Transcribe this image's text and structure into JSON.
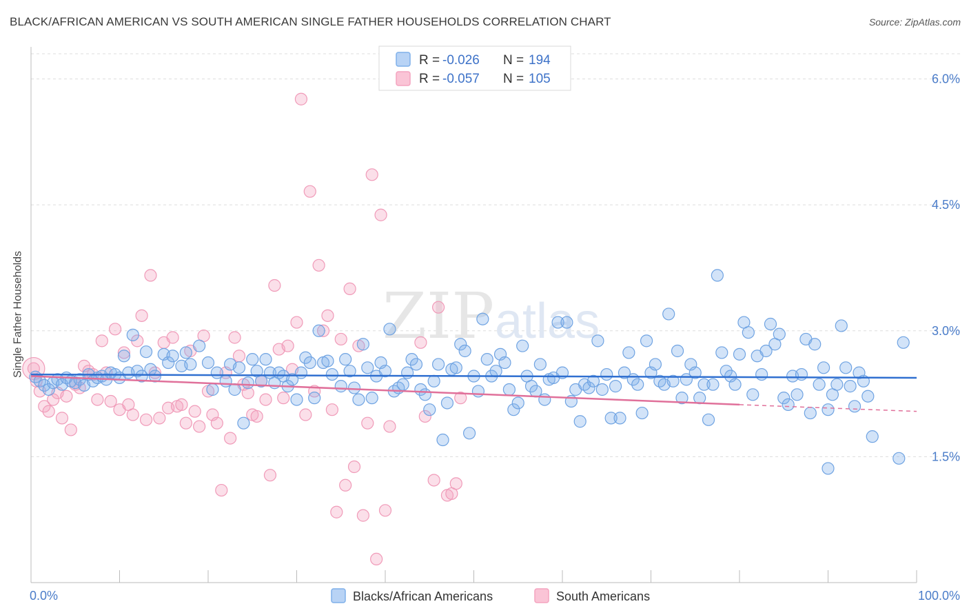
{
  "title": "BLACK/AFRICAN AMERICAN VS SOUTH AMERICAN SINGLE FATHER HOUSEHOLDS CORRELATION CHART",
  "source": "Source: ZipAtlas.com",
  "watermark": {
    "zip": "ZIP",
    "atlas": "atlas"
  },
  "colors": {
    "blue": "#7fb0ea",
    "pink": "#f4a3bf",
    "blue_line": "#2f6fd0",
    "pink_line": "#e0709a",
    "tick_text": "#4a7cc9"
  },
  "legend": {
    "rows": [
      {
        "r_label": "R =",
        "r_value": "-0.026",
        "n_label": "N =",
        "n_value": "194"
      },
      {
        "r_label": "R =",
        "r_value": "-0.057",
        "n_label": "N =",
        "n_value": "105"
      }
    ]
  },
  "bottom_legend": [
    "Blacks/African Americans",
    "South Americans"
  ],
  "chart_data": {
    "type": "scatter",
    "title": "BLACK/AFRICAN AMERICAN VS SOUTH AMERICAN SINGLE FATHER HOUSEHOLDS CORRELATION CHART",
    "xlabel": "",
    "ylabel": "Single Father Households",
    "xlim": [
      0,
      100
    ],
    "ylim": [
      0.0,
      6.3
    ],
    "x_tick_labels": [
      "0.0%",
      "100.0%"
    ],
    "y_ticks": [
      1.5,
      3.0,
      4.5,
      6.0
    ],
    "y_tick_labels": [
      "1.5%",
      "3.0%",
      "4.5%",
      "6.0%"
    ],
    "grid": "horizontal dashed",
    "legend_position": "top-center",
    "series": [
      {
        "name": "Blacks/African Americans",
        "trend": {
          "x0": 0,
          "y0": 2.48,
          "x1": 100,
          "y1": 2.44
        },
        "points": [
          [
            0.5,
            2.45
          ],
          [
            1,
            2.4
          ],
          [
            1.5,
            2.35
          ],
          [
            2,
            2.3
          ],
          [
            2.5,
            2.38
          ],
          [
            3,
            2.42
          ],
          [
            3.5,
            2.36
          ],
          [
            4,
            2.44
          ],
          [
            4.5,
            2.4
          ],
          [
            5,
            2.38
          ],
          [
            5.5,
            2.42
          ],
          [
            6,
            2.35
          ],
          [
            6.5,
            2.48
          ],
          [
            7,
            2.4
          ],
          [
            7.5,
            2.44
          ],
          [
            8,
            2.46
          ],
          [
            8.5,
            2.42
          ],
          [
            9,
            2.5
          ],
          [
            9.5,
            2.48
          ],
          [
            10,
            2.44
          ],
          [
            10.5,
            2.7
          ],
          [
            11,
            2.5
          ],
          [
            11.5,
            2.95
          ],
          [
            12,
            2.52
          ],
          [
            12.5,
            2.46
          ],
          [
            13,
            2.75
          ],
          [
            13.5,
            2.54
          ],
          [
            14,
            2.46
          ],
          [
            15,
            2.72
          ],
          [
            15.5,
            2.62
          ],
          [
            16,
            2.7
          ],
          [
            17,
            2.58
          ],
          [
            17.5,
            2.74
          ],
          [
            18,
            2.6
          ],
          [
            19,
            2.82
          ],
          [
            20,
            2.62
          ],
          [
            20.5,
            2.3
          ],
          [
            21,
            2.5
          ],
          [
            22,
            2.4
          ],
          [
            22.5,
            2.6
          ],
          [
            23,
            2.3
          ],
          [
            23.5,
            2.56
          ],
          [
            24,
            1.9
          ],
          [
            24.5,
            2.38
          ],
          [
            25,
            2.66
          ],
          [
            25.5,
            2.52
          ],
          [
            26,
            2.4
          ],
          [
            26.5,
            2.66
          ],
          [
            27,
            2.5
          ],
          [
            27.5,
            2.38
          ],
          [
            28,
            2.5
          ],
          [
            28.5,
            2.46
          ],
          [
            29,
            2.34
          ],
          [
            29.5,
            2.42
          ],
          [
            30,
            2.18
          ],
          [
            30.5,
            2.5
          ],
          [
            31,
            2.68
          ],
          [
            31.5,
            2.62
          ],
          [
            32,
            2.2
          ],
          [
            32.5,
            3.0
          ],
          [
            33,
            2.62
          ],
          [
            33.5,
            2.64
          ],
          [
            34,
            2.48
          ],
          [
            35,
            2.34
          ],
          [
            35.5,
            2.66
          ],
          [
            36,
            2.52
          ],
          [
            36.5,
            2.32
          ],
          [
            37,
            2.18
          ],
          [
            37.5,
            2.84
          ],
          [
            38,
            2.56
          ],
          [
            38.5,
            2.2
          ],
          [
            39,
            2.46
          ],
          [
            39.5,
            2.62
          ],
          [
            40,
            2.52
          ],
          [
            40.5,
            3.02
          ],
          [
            41,
            2.28
          ],
          [
            41.5,
            2.32
          ],
          [
            42,
            2.36
          ],
          [
            42.5,
            2.5
          ],
          [
            43,
            2.66
          ],
          [
            43.5,
            2.6
          ],
          [
            44,
            2.3
          ],
          [
            44.5,
            2.24
          ],
          [
            45,
            2.06
          ],
          [
            45.5,
            2.4
          ],
          [
            46,
            2.6
          ],
          [
            46.5,
            1.7
          ],
          [
            47,
            2.14
          ],
          [
            47.5,
            2.54
          ],
          [
            48,
            2.56
          ],
          [
            48.5,
            2.84
          ],
          [
            49,
            2.76
          ],
          [
            49.5,
            1.78
          ],
          [
            50,
            2.46
          ],
          [
            50.5,
            2.28
          ],
          [
            51,
            3.14
          ],
          [
            51.5,
            2.66
          ],
          [
            52,
            2.46
          ],
          [
            52.5,
            2.52
          ],
          [
            53,
            2.72
          ],
          [
            53.5,
            2.62
          ],
          [
            54,
            2.3
          ],
          [
            54.5,
            2.06
          ],
          [
            55,
            2.14
          ],
          [
            55.5,
            2.82
          ],
          [
            56,
            2.46
          ],
          [
            56.5,
            2.34
          ],
          [
            57,
            2.28
          ],
          [
            57.5,
            2.6
          ],
          [
            58,
            2.18
          ],
          [
            58.5,
            2.42
          ],
          [
            59,
            2.44
          ],
          [
            59.5,
            3.1
          ],
          [
            60,
            2.5
          ],
          [
            60.5,
            3.1
          ],
          [
            61,
            2.16
          ],
          [
            61.5,
            2.3
          ],
          [
            62,
            1.92
          ],
          [
            62.5,
            2.36
          ],
          [
            63,
            2.32
          ],
          [
            63.5,
            2.4
          ],
          [
            64,
            2.88
          ],
          [
            64.5,
            2.3
          ],
          [
            65,
            2.48
          ],
          [
            65.5,
            1.96
          ],
          [
            66,
            2.34
          ],
          [
            66.5,
            1.96
          ],
          [
            67,
            2.5
          ],
          [
            67.5,
            2.74
          ],
          [
            68,
            2.42
          ],
          [
            68.5,
            2.36
          ],
          [
            69,
            2.02
          ],
          [
            69.5,
            2.88
          ],
          [
            70,
            2.5
          ],
          [
            70.5,
            2.6
          ],
          [
            71,
            2.4
          ],
          [
            71.5,
            2.36
          ],
          [
            72,
            3.2
          ],
          [
            72.5,
            2.4
          ],
          [
            73,
            2.76
          ],
          [
            73.5,
            2.2
          ],
          [
            74,
            2.42
          ],
          [
            74.5,
            2.6
          ],
          [
            75,
            2.5
          ],
          [
            75.5,
            2.2
          ],
          [
            76,
            2.36
          ],
          [
            76.5,
            1.94
          ],
          [
            77,
            2.36
          ],
          [
            77.5,
            3.66
          ],
          [
            78,
            2.74
          ],
          [
            78.5,
            2.52
          ],
          [
            79,
            2.46
          ],
          [
            79.5,
            2.36
          ],
          [
            80,
            2.72
          ],
          [
            80.5,
            3.1
          ],
          [
            81,
            2.98
          ],
          [
            81.5,
            2.24
          ],
          [
            82,
            2.7
          ],
          [
            82.5,
            2.48
          ],
          [
            83,
            2.76
          ],
          [
            83.5,
            3.08
          ],
          [
            84,
            2.84
          ],
          [
            84.5,
            2.96
          ],
          [
            85,
            2.2
          ],
          [
            85.5,
            2.12
          ],
          [
            86,
            2.46
          ],
          [
            86.5,
            2.24
          ],
          [
            87,
            2.48
          ],
          [
            87.5,
            2.9
          ],
          [
            88,
            2.02
          ],
          [
            88.5,
            2.84
          ],
          [
            89,
            2.36
          ],
          [
            89.5,
            2.56
          ],
          [
            90,
            2.06
          ],
          [
            90.5,
            2.24
          ],
          [
            91,
            2.36
          ],
          [
            91.5,
            3.06
          ],
          [
            92,
            2.56
          ],
          [
            92.5,
            2.34
          ],
          [
            93,
            2.1
          ],
          [
            93.5,
            2.5
          ],
          [
            94,
            2.4
          ],
          [
            94.5,
            2.22
          ],
          [
            95,
            1.74
          ],
          [
            98,
            1.48
          ],
          [
            90,
            1.36
          ],
          [
            98.5,
            2.86
          ]
        ]
      },
      {
        "name": "South Americans",
        "trend": {
          "x0": 0,
          "y0": 2.46,
          "x1": 80,
          "y1": 2.12,
          "dash_to_x": 100,
          "dash_to_y": 2.04
        },
        "points": [
          [
            0.3,
            2.55
          ],
          [
            0.6,
            2.4
          ],
          [
            1,
            2.28
          ],
          [
            1.5,
            2.1
          ],
          [
            2,
            2.04
          ],
          [
            2.5,
            2.18
          ],
          [
            3,
            2.26
          ],
          [
            3.5,
            1.96
          ],
          [
            4,
            2.22
          ],
          [
            4.5,
            1.82
          ],
          [
            5,
            2.36
          ],
          [
            5.5,
            2.32
          ],
          [
            6,
            2.58
          ],
          [
            6.5,
            2.52
          ],
          [
            7,
            2.48
          ],
          [
            7.5,
            2.18
          ],
          [
            8,
            2.88
          ],
          [
            8.5,
            2.5
          ],
          [
            9,
            2.16
          ],
          [
            9.5,
            3.02
          ],
          [
            10,
            2.06
          ],
          [
            10.5,
            2.74
          ],
          [
            11,
            2.12
          ],
          [
            11.5,
            2.0
          ],
          [
            12,
            2.88
          ],
          [
            12.5,
            3.18
          ],
          [
            13,
            1.94
          ],
          [
            13.5,
            3.66
          ],
          [
            14,
            2.5
          ],
          [
            14.5,
            1.96
          ],
          [
            15,
            2.86
          ],
          [
            15.5,
            2.08
          ],
          [
            16,
            2.92
          ],
          [
            16.5,
            2.1
          ],
          [
            17,
            2.12
          ],
          [
            17.5,
            1.9
          ],
          [
            18,
            2.76
          ],
          [
            18.5,
            2.04
          ],
          [
            19,
            1.86
          ],
          [
            19.5,
            2.94
          ],
          [
            20,
            2.28
          ],
          [
            20.5,
            2.0
          ],
          [
            21,
            1.9
          ],
          [
            21.5,
            1.1
          ],
          [
            22,
            2.5
          ],
          [
            22.5,
            1.72
          ],
          [
            23,
            2.92
          ],
          [
            23.5,
            2.7
          ],
          [
            24,
            2.36
          ],
          [
            24.5,
            2.26
          ],
          [
            25,
            2.0
          ],
          [
            25.5,
            1.98
          ],
          [
            26,
            2.4
          ],
          [
            26.5,
            2.18
          ],
          [
            27,
            1.28
          ],
          [
            27.5,
            3.54
          ],
          [
            28,
            2.78
          ],
          [
            28.5,
            2.2
          ],
          [
            29,
            2.82
          ],
          [
            29.5,
            2.54
          ],
          [
            30,
            3.1
          ],
          [
            30.5,
            5.76
          ],
          [
            31,
            2.0
          ],
          [
            31.5,
            4.66
          ],
          [
            32,
            2.28
          ],
          [
            32.5,
            3.78
          ],
          [
            33,
            3.0
          ],
          [
            33.5,
            3.18
          ],
          [
            34,
            2.06
          ],
          [
            34.5,
            0.84
          ],
          [
            35,
            2.9
          ],
          [
            35.5,
            1.16
          ],
          [
            36,
            3.5
          ],
          [
            36.5,
            1.38
          ],
          [
            37,
            2.82
          ],
          [
            37.5,
            0.8
          ],
          [
            38,
            1.9
          ],
          [
            38.5,
            4.86
          ],
          [
            39,
            0.28
          ],
          [
            39.5,
            4.38
          ],
          [
            40,
            0.86
          ],
          [
            40.5,
            1.86
          ],
          [
            44,
            2.86
          ],
          [
            44.5,
            1.98
          ],
          [
            45.5,
            1.22
          ],
          [
            46,
            3.28
          ],
          [
            47,
            1.04
          ],
          [
            47.5,
            1.06
          ],
          [
            48,
            1.18
          ],
          [
            48.5,
            2.2
          ]
        ]
      }
    ]
  }
}
